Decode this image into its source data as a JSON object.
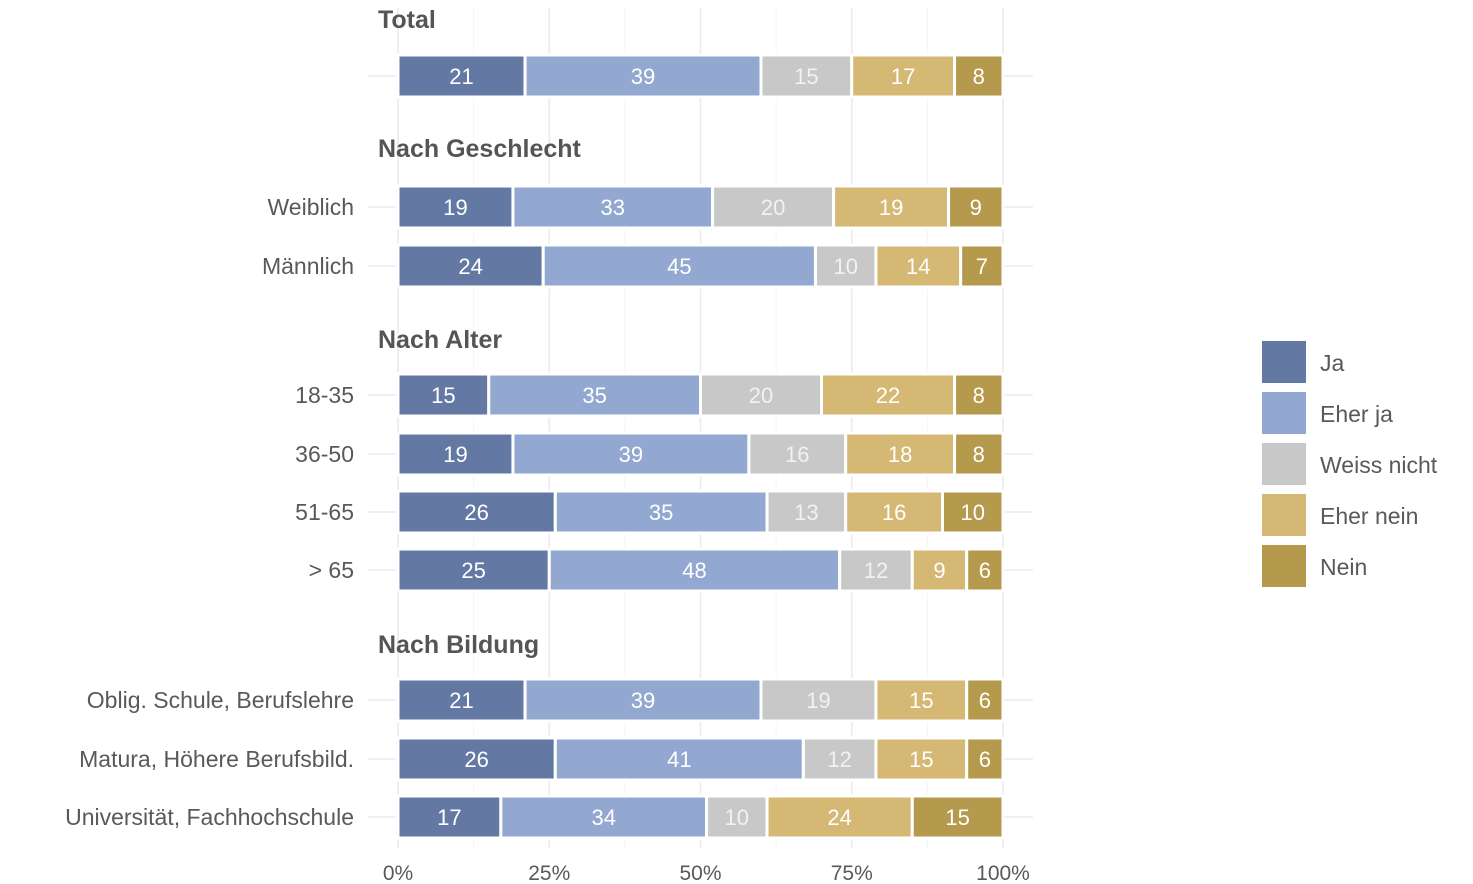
{
  "chart_data": {
    "type": "bar",
    "orientation": "horizontal",
    "stacked": true,
    "percent_scale": true,
    "xlim": [
      0,
      100
    ],
    "x_ticks": [
      "0%",
      "25%",
      "50%",
      "75%",
      "100%"
    ],
    "grid": true,
    "legend_position": "right",
    "categories_legend": [
      {
        "name": "Ja",
        "color": "#6478a4"
      },
      {
        "name": "Eher ja",
        "color": "#93a8d0"
      },
      {
        "name": "Weiss nicht",
        "color": "#c8c8c8"
      },
      {
        "name": "Eher nein",
        "color": "#d4b873"
      },
      {
        "name": "Nein",
        "color": "#b59a4e"
      }
    ],
    "groups": [
      {
        "title": "Total",
        "rows": [
          {
            "label": "",
            "values": [
              21,
              39,
              15,
              17,
              8
            ]
          }
        ]
      },
      {
        "title": "Nach Geschlecht",
        "rows": [
          {
            "label": "Weiblich",
            "values": [
              19,
              33,
              20,
              19,
              9
            ]
          },
          {
            "label": "Männlich",
            "values": [
              24,
              45,
              10,
              14,
              7
            ]
          }
        ]
      },
      {
        "title": "Nach Alter",
        "rows": [
          {
            "label": "18-35",
            "values": [
              15,
              35,
              20,
              22,
              8
            ]
          },
          {
            "label": "36-50",
            "values": [
              19,
              39,
              16,
              18,
              8
            ]
          },
          {
            "label": "51-65",
            "values": [
              26,
              35,
              13,
              16,
              10
            ]
          },
          {
            "label": "> 65",
            "values": [
              25,
              48,
              12,
              9,
              6
            ]
          }
        ]
      },
      {
        "title": "Nach Bildung",
        "rows": [
          {
            "label": "Oblig. Schule, Berufslehre",
            "values": [
              21,
              39,
              19,
              15,
              6
            ]
          },
          {
            "label": "Matura, Höhere Berufsbild.",
            "values": [
              26,
              41,
              12,
              15,
              6
            ]
          },
          {
            "label": "Universität, Fachhochschule",
            "values": [
              17,
              34,
              10,
              24,
              15
            ]
          }
        ]
      }
    ]
  }
}
